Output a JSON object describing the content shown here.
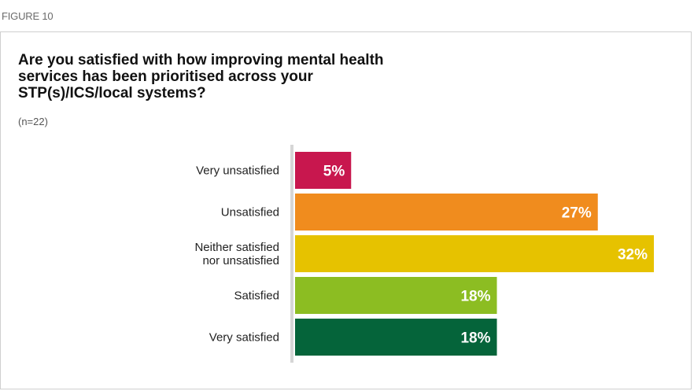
{
  "figure_label": "FIGURE 10",
  "chart_data": {
    "type": "bar",
    "orientation": "horizontal",
    "title": "Are you satisfied with how improving mental health\nservices has been prioritised across your\nSTP(s)/ICS/local systems?",
    "subtitle": "(n=22)",
    "categories": [
      [
        "Very unsatisfied"
      ],
      [
        "Unsatisfied"
      ],
      [
        "Neither satisfied",
        "nor unsatisfied"
      ],
      [
        "Satisfied"
      ],
      [
        "Very satisfied"
      ]
    ],
    "values": [
      5,
      27,
      32,
      18,
      18
    ],
    "value_labels": [
      "5%",
      "27%",
      "32%",
      "18%",
      "18%"
    ],
    "colors": [
      "#c8174e",
      "#f08c1e",
      "#e6c200",
      "#8cbd22",
      "#05643a"
    ],
    "xlim": [
      0,
      35
    ],
    "grid": false,
    "legend": "none"
  }
}
